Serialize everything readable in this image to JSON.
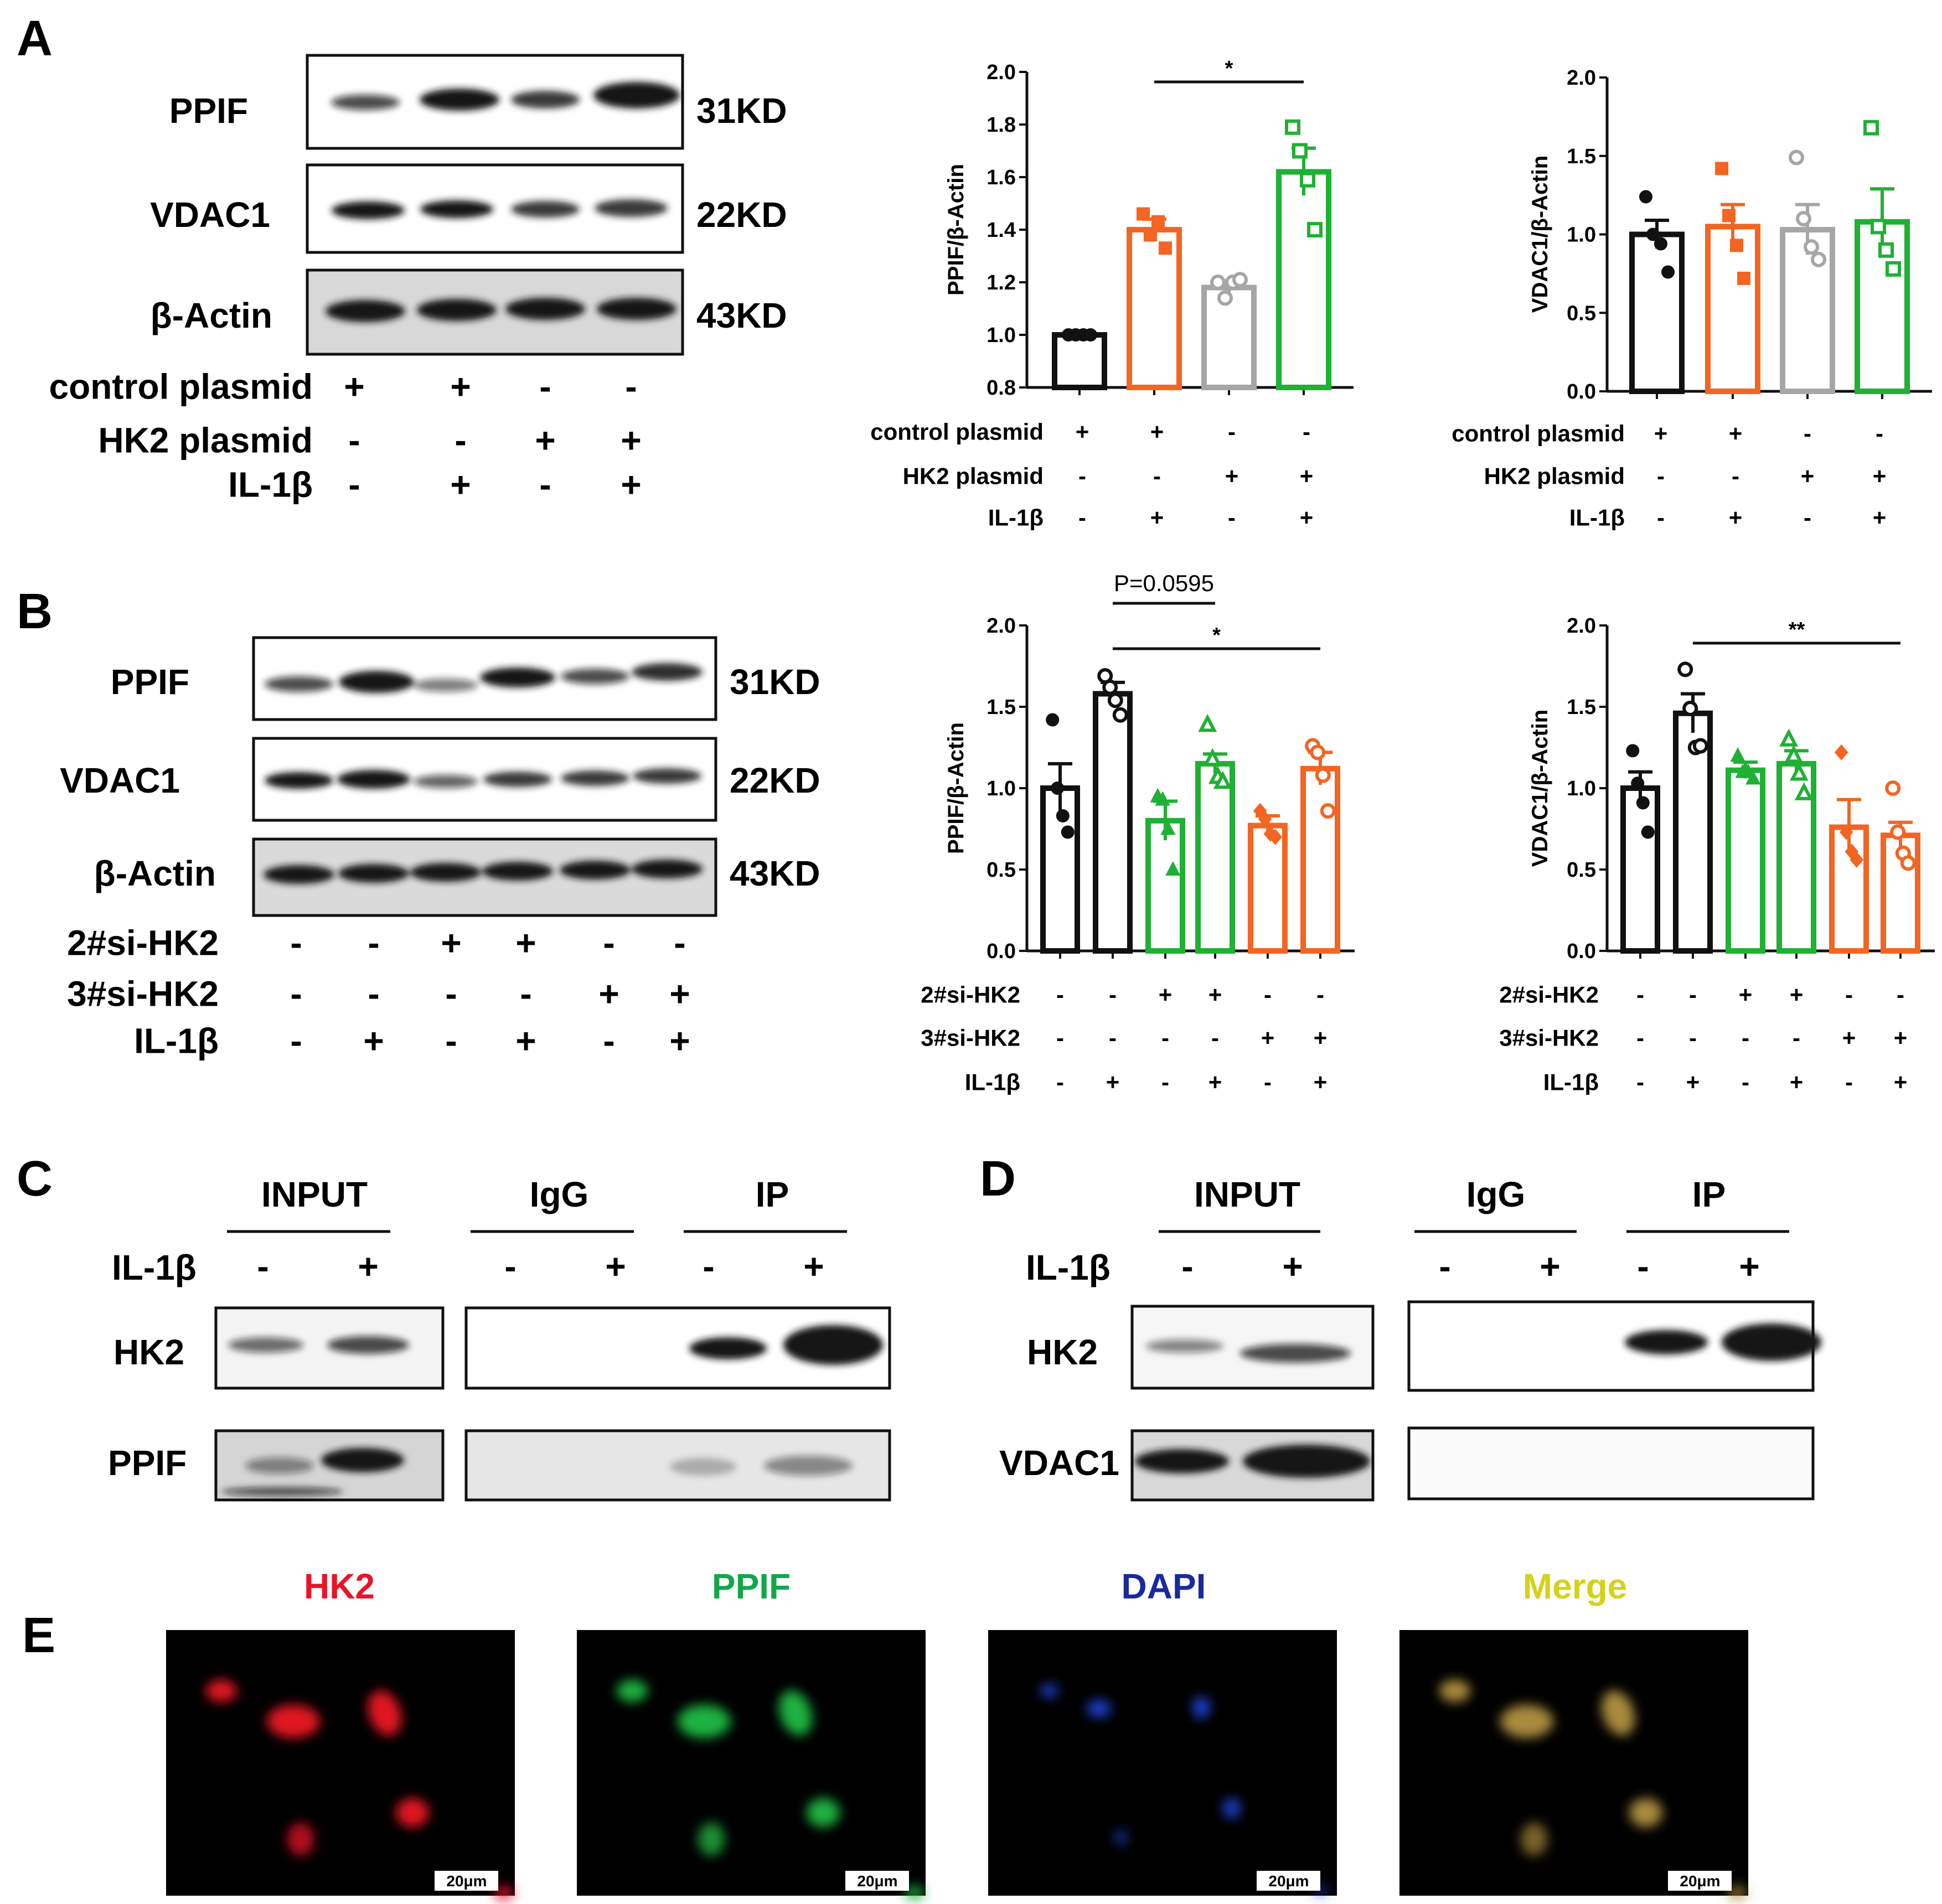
{
  "panels": {
    "A": {
      "letter": "A",
      "blot": {
        "proteins": [
          "PPIF",
          "VDAC1",
          "β-Actin"
        ],
        "sizes": [
          "31KD",
          "22KD",
          "43KD"
        ],
        "conditions": [
          {
            "label": "control plasmid",
            "signs": [
              "+",
              "+",
              "-",
              "-"
            ]
          },
          {
            "label": "HK2 plasmid",
            "signs": [
              "-",
              "-",
              "+",
              "+"
            ]
          },
          {
            "label": "IL-1β",
            "signs": [
              "-",
              "+",
              "-",
              "+"
            ]
          }
        ]
      }
    },
    "B": {
      "letter": "B",
      "blot": {
        "proteins": [
          "PPIF",
          "VDAC1",
          "β-Actin"
        ],
        "sizes": [
          "31KD",
          "22KD",
          "43KD"
        ],
        "conditions": [
          {
            "label": "2#si-HK2",
            "signs": [
              "-",
              "-",
              "+",
              "+",
              "-",
              "-"
            ]
          },
          {
            "label": "3#si-HK2",
            "signs": [
              "-",
              "-",
              "-",
              "-",
              "+",
              "+"
            ]
          },
          {
            "label": "IL-1β",
            "signs": [
              "-",
              "+",
              "-",
              "+",
              "-",
              "+"
            ]
          }
        ]
      }
    },
    "C": {
      "letter": "C",
      "groups": [
        "INPUT",
        "IgG",
        "IP"
      ],
      "treatment": {
        "label": "IL-1β",
        "signs": [
          "-",
          "+",
          "-",
          "+",
          "-",
          "+"
        ]
      },
      "proteins": [
        "HK2",
        "PPIF"
      ]
    },
    "D": {
      "letter": "D",
      "groups": [
        "INPUT",
        "IgG",
        "IP"
      ],
      "treatment": {
        "label": "IL-1β",
        "signs": [
          "-",
          "+",
          "-",
          "+",
          "-",
          "+"
        ]
      },
      "proteins": [
        "HK2",
        "VDAC1"
      ]
    },
    "E": {
      "letter": "E",
      "channels": [
        {
          "label": "HK2",
          "color": "#e8152a"
        },
        {
          "label": "PPIF",
          "color": "#12a84a"
        },
        {
          "label": "DAPI",
          "color": "#1a2a9c"
        },
        {
          "label": "Merge",
          "color": "#d4d21a"
        }
      ],
      "scale_bar": "20μm"
    }
  },
  "chart_data": [
    {
      "id": "A-PPIF",
      "type": "bar",
      "ylabel": "PPIF/β-Actin",
      "ylim": [
        0.8,
        2.0
      ],
      "yticks": [
        0.8,
        1.0,
        1.2,
        1.4,
        1.6,
        1.8,
        2.0
      ],
      "ytick_labels": [
        "0.8",
        "1.0",
        "1.2",
        "1.4",
        "1.6",
        "1.8",
        "2.0"
      ],
      "colors": [
        "#111111",
        "#f26522",
        "#a6a6a6",
        "#20b034"
      ],
      "markers": [
        "circle-filled",
        "square-filled",
        "circle-open",
        "square-open"
      ],
      "values": [
        1.0,
        1.4,
        1.18,
        1.62
      ],
      "sem": [
        0.0,
        0.04,
        0.025,
        0.09
      ],
      "points": [
        [
          1.0,
          1.0,
          1.0,
          1.0
        ],
        [
          1.46,
          1.38,
          1.43,
          1.33
        ],
        [
          1.2,
          1.14,
          1.2,
          1.21
        ],
        [
          1.79,
          1.7,
          1.59,
          1.4
        ]
      ],
      "sig": [
        {
          "from": 1,
          "to": 3,
          "label": "*"
        }
      ],
      "conditions": [
        {
          "label": "control plasmid",
          "signs": [
            "+",
            "+",
            "-",
            "-"
          ]
        },
        {
          "label": "HK2 plasmid",
          "signs": [
            "-",
            "-",
            "+",
            "+"
          ]
        },
        {
          "label": "IL-1β",
          "signs": [
            "-",
            "+",
            "-",
            "+"
          ]
        }
      ]
    },
    {
      "id": "A-VDAC1",
      "type": "bar",
      "ylabel": "VDAC1/β-Actin",
      "ylim": [
        0.0,
        2.0
      ],
      "yticks": [
        0.0,
        0.5,
        1.0,
        1.5,
        2.0
      ],
      "ytick_labels": [
        "0.0",
        "0.5",
        "1.0",
        "1.5",
        "2.0"
      ],
      "colors": [
        "#111111",
        "#f26522",
        "#a6a6a6",
        "#20b034"
      ],
      "markers": [
        "circle-filled",
        "square-filled",
        "circle-open",
        "square-open"
      ],
      "values": [
        1.0,
        1.05,
        1.03,
        1.08
      ],
      "sem": [
        0.09,
        0.14,
        0.16,
        0.21
      ],
      "points": [
        [
          1.24,
          1.0,
          0.94,
          0.76
        ],
        [
          1.42,
          1.12,
          0.93,
          0.72
        ],
        [
          1.49,
          1.1,
          0.92,
          0.84
        ],
        [
          1.68,
          1.05,
          0.9,
          0.78
        ]
      ],
      "sig": [],
      "conditions": [
        {
          "label": "control plasmid",
          "signs": [
            "+",
            "+",
            "-",
            "-"
          ]
        },
        {
          "label": "HK2 plasmid",
          "signs": [
            "-",
            "-",
            "+",
            "+"
          ]
        },
        {
          "label": "IL-1β",
          "signs": [
            "-",
            "+",
            "-",
            "+"
          ]
        }
      ]
    },
    {
      "id": "B-PPIF",
      "type": "bar",
      "ylabel": "PPIF/β-Actin",
      "ylim": [
        0.0,
        2.0
      ],
      "yticks": [
        0.0,
        0.5,
        1.0,
        1.5,
        2.0
      ],
      "ytick_labels": [
        "0.0",
        "0.5",
        "1.0",
        "1.5",
        "2.0"
      ],
      "colors": [
        "#111111",
        "#111111",
        "#20b034",
        "#20b034",
        "#f26522",
        "#f26522"
      ],
      "markers": [
        "circle-filled",
        "circle-open",
        "triangle-filled",
        "triangle-open",
        "diamond-filled",
        "circle-open"
      ],
      "values": [
        1.0,
        1.58,
        0.8,
        1.15,
        0.77,
        1.12
      ],
      "sem": [
        0.15,
        0.07,
        0.12,
        0.06,
        0.06,
        0.1
      ],
      "points": [
        [
          1.42,
          1.0,
          0.83,
          0.73
        ],
        [
          1.69,
          1.62,
          1.54,
          1.45
        ],
        [
          0.95,
          0.93,
          0.75,
          0.5
        ],
        [
          1.39,
          1.18,
          1.07,
          1.04
        ],
        [
          0.86,
          0.81,
          0.72,
          0.7
        ],
        [
          1.26,
          1.22,
          1.08,
          0.86
        ]
      ],
      "sig": [
        {
          "from": 1,
          "to": 3,
          "label": "P=0.0595"
        },
        {
          "from": 1,
          "to": 5,
          "label": "*"
        }
      ],
      "conditions": [
        {
          "label": "2#si-HK2",
          "signs": [
            "-",
            "-",
            "+",
            "+",
            "-",
            "-"
          ]
        },
        {
          "label": "3#si-HK2",
          "signs": [
            "-",
            "-",
            "-",
            "-",
            "+",
            "+"
          ]
        },
        {
          "label": "IL-1β",
          "signs": [
            "-",
            "+",
            "-",
            "+",
            "-",
            "+"
          ]
        }
      ]
    },
    {
      "id": "B-VDAC1",
      "type": "bar",
      "ylabel": "VDAC1/β-Actin",
      "ylim": [
        0.0,
        2.0
      ],
      "yticks": [
        0.0,
        0.5,
        1.0,
        1.5,
        2.0
      ],
      "ytick_labels": [
        "0.0",
        "0.5",
        "1.0",
        "1.5",
        "2.0"
      ],
      "colors": [
        "#111111",
        "#111111",
        "#20b034",
        "#20b034",
        "#f26522",
        "#f26522"
      ],
      "markers": [
        "circle-filled",
        "circle-open",
        "triangle-filled",
        "triangle-open",
        "diamond-filled",
        "circle-open"
      ],
      "values": [
        1.0,
        1.46,
        1.11,
        1.15,
        0.76,
        0.71
      ],
      "sem": [
        0.1,
        0.12,
        0.05,
        0.08,
        0.17,
        0.08
      ],
      "points": [
        [
          1.23,
          1.03,
          0.91,
          0.73
        ],
        [
          1.73,
          1.49,
          1.25,
          1.26
        ],
        [
          1.2,
          1.1,
          1.1,
          1.06
        ],
        [
          1.3,
          1.2,
          1.09,
          0.97
        ],
        [
          1.22,
          0.73,
          0.61,
          0.56
        ],
        [
          1.0,
          0.73,
          0.6,
          0.54
        ]
      ],
      "sig": [
        {
          "from": 1,
          "to": 5,
          "label": "**"
        }
      ],
      "conditions": [
        {
          "label": "2#si-HK2",
          "signs": [
            "-",
            "-",
            "+",
            "+",
            "-",
            "-"
          ]
        },
        {
          "label": "3#si-HK2",
          "signs": [
            "-",
            "-",
            "-",
            "-",
            "+",
            "+"
          ]
        },
        {
          "label": "IL-1β",
          "signs": [
            "-",
            "+",
            "-",
            "+",
            "-",
            "+"
          ]
        }
      ]
    }
  ]
}
